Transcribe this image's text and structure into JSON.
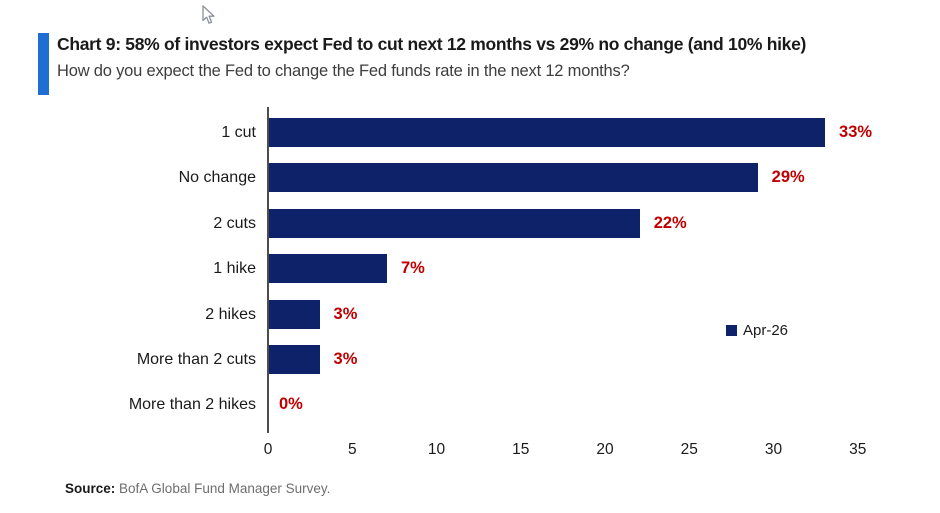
{
  "header": {
    "title": "Chart 9: 58% of investors expect Fed to cut next 12 months vs 29% no change (and 10% hike)",
    "subtitle": "How do you expect the Fed to change the Fed funds rate in the next 12 months?",
    "accent_color": "#1f6fd2"
  },
  "chart_data": {
    "type": "bar",
    "orientation": "horizontal",
    "title": "Chart 9: 58% of investors expect Fed to cut next 12 months vs 29% no change (and 10% hike)",
    "subtitle": "How do you expect the Fed to change the Fed funds rate in the next 12 months?",
    "categories": [
      "1 cut",
      "No change",
      "2 cuts",
      "1 hike",
      "2 hikes",
      "More than 2 cuts",
      "More than 2 hikes"
    ],
    "values": [
      33,
      29,
      22,
      7,
      3,
      3,
      0
    ],
    "value_labels": [
      "33%",
      "29%",
      "22%",
      "7%",
      "3%",
      "3%",
      "0%"
    ],
    "series_name": "Apr-26",
    "xlabel": "",
    "ylabel": "",
    "xlim": [
      0,
      35
    ],
    "x_ticks": [
      0,
      5,
      10,
      15,
      20,
      25,
      30,
      35
    ],
    "grid": false,
    "bar_color": "#0d2268",
    "value_label_color": "#c00000",
    "legend_position": "right-middle"
  },
  "legend": {
    "label": "Apr-26",
    "swatch_color": "#0d2268"
  },
  "footer": {
    "source_label": "Source:",
    "source_text": "BofA Global Fund Manager Survey."
  }
}
